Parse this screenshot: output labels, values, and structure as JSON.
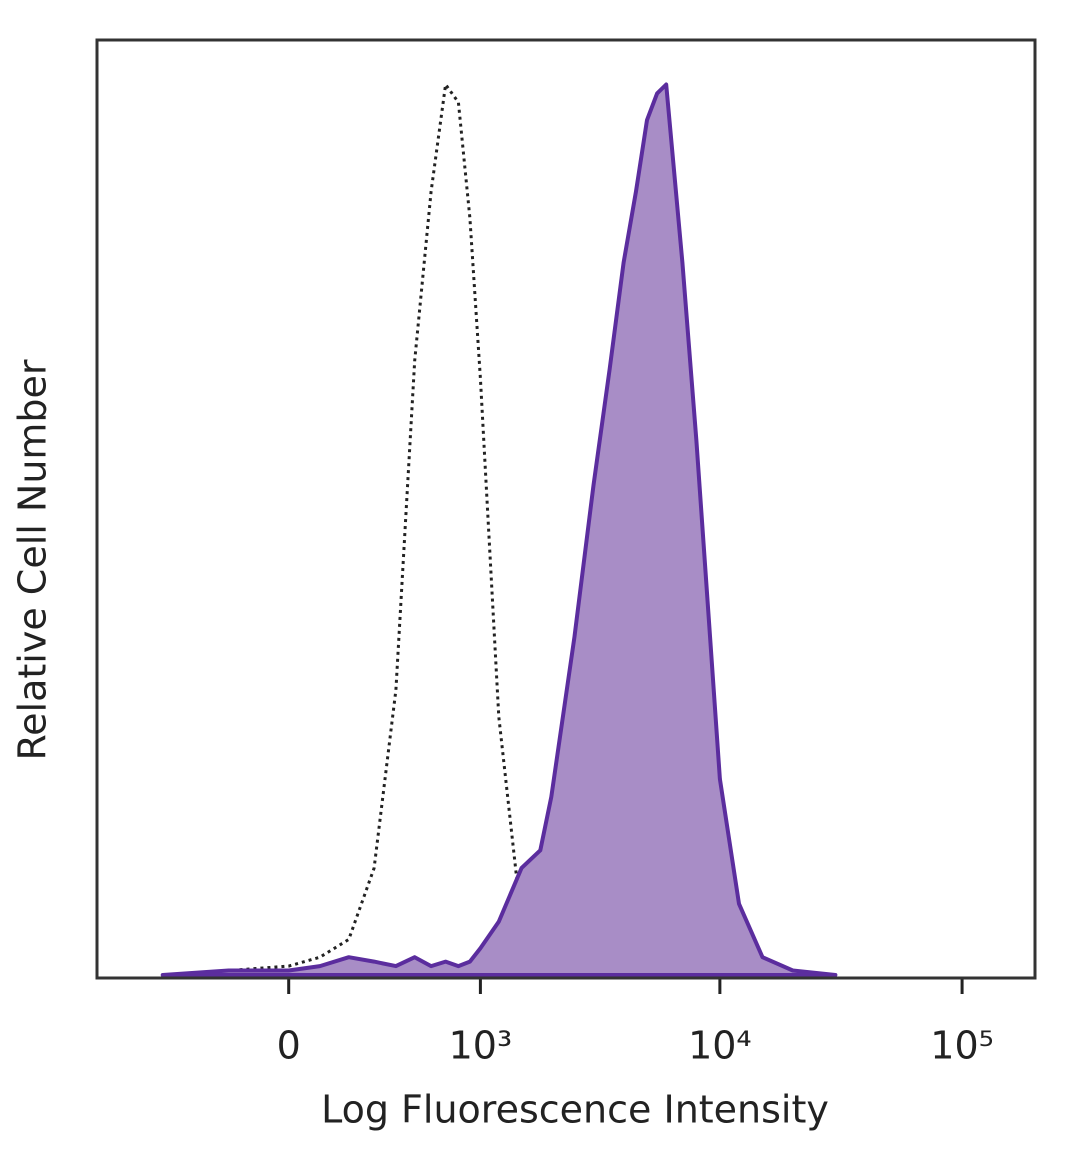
{
  "chart_data": {
    "type": "histogram-overlay",
    "xlabel": "Log Fluorescence Intensity",
    "ylabel": "Relative Cell Number",
    "xscale": "biexponential",
    "xlim": [
      -1000,
      200000
    ],
    "xticks": [
      0,
      {
        "value": 1000,
        "label": "10³"
      },
      {
        "value": 10000,
        "label": "10⁴"
      },
      {
        "value": 100000,
        "label": "10⁵"
      }
    ],
    "ylim": [
      0,
      105
    ],
    "x": [
      -500,
      -200,
      0,
      100,
      200,
      300,
      400,
      500,
      600,
      700,
      800,
      900,
      1000,
      1200,
      1500,
      1800,
      2000,
      2500,
      3000,
      3500,
      4000,
      4500,
      5000,
      5500,
      6000,
      7000,
      8000,
      9000,
      10000,
      12000,
      15000,
      20000,
      30000
    ],
    "series": [
      {
        "style": "dotted",
        "color": "#222222",
        "values": [
          0,
          0.5,
          1,
          2,
          4,
          12,
          32,
          69,
          88,
          100,
          98,
          85,
          67,
          29,
          6,
          1,
          0,
          0,
          0,
          0,
          0,
          0,
          0,
          0,
          0,
          0,
          0,
          0,
          0,
          0,
          0,
          0,
          0
        ]
      },
      {
        "style": "filled",
        "color": "#5b2d9e",
        "fill": "#a88dc6",
        "values": [
          0,
          0.5,
          0.5,
          1,
          2,
          1.5,
          1,
          2,
          1,
          1.5,
          1,
          1.5,
          3,
          6,
          12,
          14,
          20,
          38,
          55,
          68,
          80,
          88,
          96,
          99,
          100,
          80,
          60,
          40,
          22,
          8,
          2,
          0.5,
          0
        ]
      }
    ]
  }
}
